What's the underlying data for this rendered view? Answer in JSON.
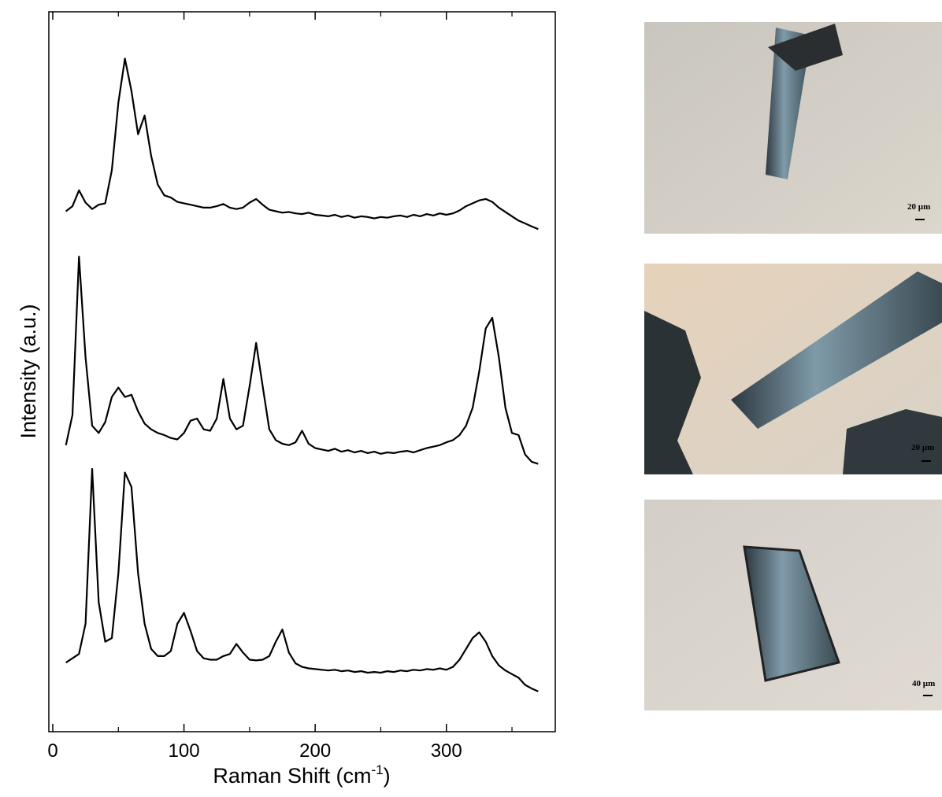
{
  "chart_data": {
    "type": "line",
    "x_label": {
      "text": "Raman Shift (cm",
      "sup": "-1",
      "end": ")"
    },
    "y_label": "Intensity (a.u.)",
    "xlim": [
      -3,
      383
    ],
    "ylim": [
      0,
      100
    ],
    "xticks": [
      0,
      100,
      200,
      300
    ],
    "xminor": [
      50,
      150,
      250,
      350
    ],
    "x": [
      10,
      15,
      20,
      25,
      30,
      35,
      40,
      45,
      50,
      55,
      60,
      65,
      70,
      75,
      80,
      85,
      90,
      95,
      100,
      105,
      110,
      115,
      120,
      125,
      130,
      135,
      140,
      145,
      150,
      155,
      160,
      165,
      170,
      175,
      180,
      185,
      190,
      195,
      200,
      205,
      210,
      215,
      220,
      225,
      230,
      235,
      240,
      245,
      250,
      255,
      260,
      265,
      270,
      275,
      280,
      285,
      290,
      295,
      300,
      305,
      310,
      315,
      320,
      325,
      330,
      335,
      340,
      345,
      350,
      355,
      360,
      365,
      370
    ],
    "series": [
      {
        "color": "#000000",
        "values": [
          72.3,
          73.0,
          75.2,
          73.5,
          72.6,
          73.2,
          73.4,
          78,
          87.4,
          93.5,
          89,
          83,
          85.6,
          80,
          76,
          74.5,
          74.2,
          73.6,
          73.4,
          73.2,
          73.0,
          72.8,
          72.8,
          73.0,
          73.3,
          72.8,
          72.6,
          72.8,
          73.5,
          74.0,
          73.2,
          72.5,
          72.3,
          72.1,
          72.2,
          72.0,
          71.9,
          72.1,
          71.8,
          71.7,
          71.6,
          71.8,
          71.5,
          71.7,
          71.4,
          71.6,
          71.5,
          71.3,
          71.5,
          71.4,
          71.6,
          71.7,
          71.5,
          71.8,
          71.6,
          71.9,
          71.7,
          72.0,
          71.8,
          72.0,
          72.4,
          73.0,
          73.4,
          73.8,
          74.0,
          73.6,
          72.8,
          72.2,
          71.6,
          71.0,
          70.6,
          70.2,
          69.8
        ]
      },
      {
        "color": "#000000",
        "values": [
          39.8,
          44,
          66,
          52,
          42.5,
          41.5,
          43,
          46.5,
          47.8,
          46.5,
          46.8,
          44.5,
          42.8,
          42,
          41.5,
          41.2,
          40.8,
          40.6,
          41.5,
          43.2,
          43.5,
          42,
          41.8,
          43.5,
          49,
          43.5,
          42,
          42.5,
          48,
          54,
          48,
          42,
          40.5,
          40,
          39.8,
          40.2,
          41.8,
          40,
          39.4,
          39.2,
          39.0,
          39.3,
          38.9,
          39.1,
          38.8,
          39.0,
          38.7,
          38.9,
          38.6,
          38.8,
          38.7,
          38.9,
          39.0,
          38.8,
          39.1,
          39.4,
          39.6,
          39.8,
          40.2,
          40.5,
          41.2,
          42.5,
          45,
          50,
          56,
          57.5,
          52,
          45,
          41.5,
          41.2,
          38.5,
          37.5,
          37.2
        ]
      },
      {
        "color": "#000000",
        "values": [
          9.6,
          10.2,
          10.8,
          15,
          36.5,
          18,
          12.5,
          13,
          22,
          36,
          34,
          22,
          15,
          11.5,
          10.5,
          10.5,
          11.2,
          15,
          16.5,
          14,
          11.2,
          10.2,
          10,
          10,
          10.5,
          10.8,
          12.2,
          11,
          10,
          9.9,
          10,
          10.5,
          12.5,
          14.2,
          11,
          9.5,
          9.0,
          8.8,
          8.7,
          8.6,
          8.5,
          8.6,
          8.4,
          8.5,
          8.3,
          8.4,
          8.2,
          8.3,
          8.2,
          8.4,
          8.3,
          8.5,
          8.4,
          8.6,
          8.5,
          8.7,
          8.6,
          8.8,
          8.6,
          9.0,
          10,
          11.5,
          13,
          13.8,
          12.5,
          10.5,
          9.2,
          8.5,
          8,
          7.5,
          6.5,
          6,
          5.6
        ]
      }
    ]
  },
  "images": [
    {
      "scale_label": "20 µm"
    },
    {
      "scale_label": "20 µm"
    },
    {
      "scale_label": "40 µm"
    }
  ]
}
